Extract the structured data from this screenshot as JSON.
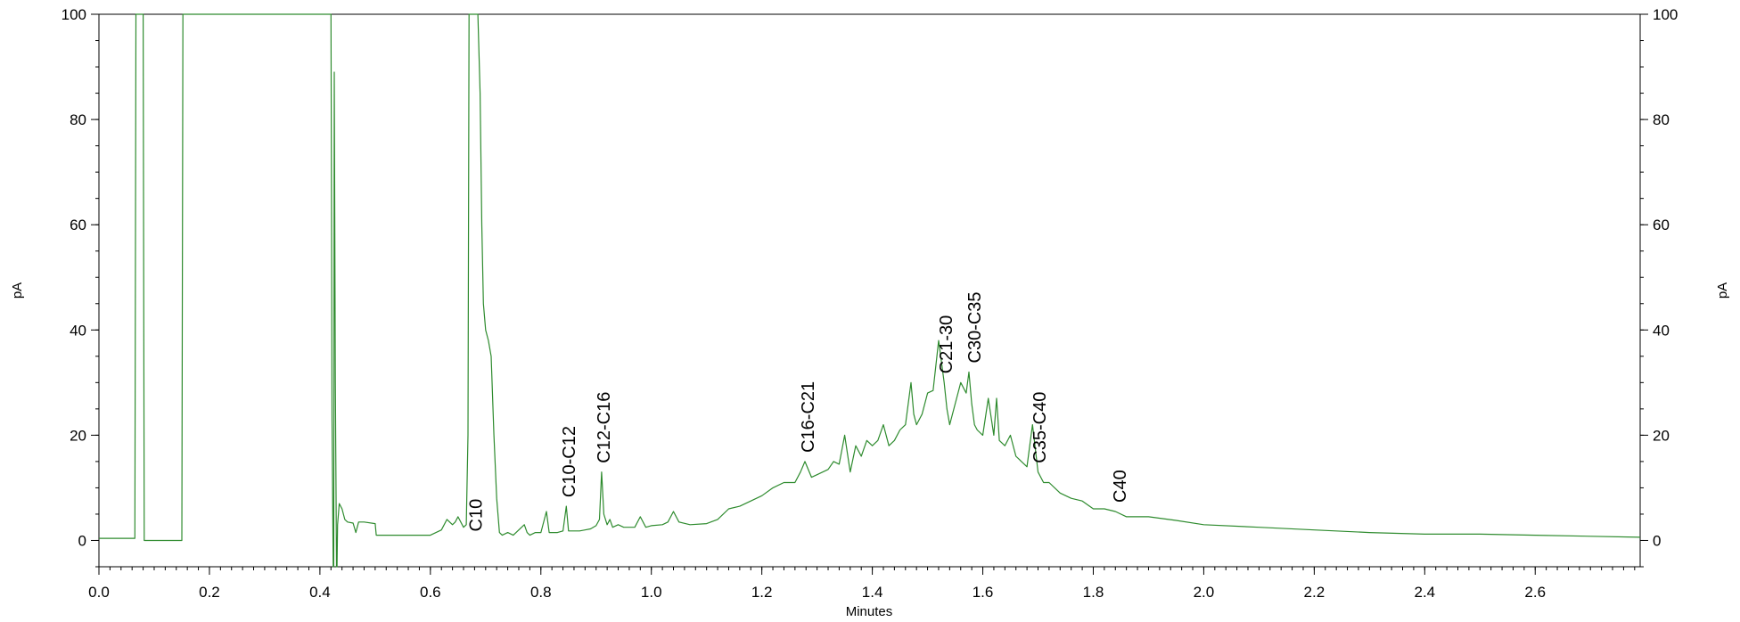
{
  "chart_data": {
    "type": "line",
    "title": "",
    "xlabel": "Minutes",
    "ylabel": "pA",
    "y2label": "pA",
    "xlim": [
      0,
      2.79
    ],
    "ylim": [
      -5,
      100
    ],
    "x_ticks": [
      0.0,
      0.2,
      0.4,
      0.6,
      0.8,
      1.0,
      1.2,
      1.4,
      1.6,
      1.8,
      2.0,
      2.2,
      2.4,
      2.6
    ],
    "x_tick_labels": [
      "0.0",
      "0.2",
      "0.4",
      "0.6",
      "0.8",
      "1.0",
      "1.2",
      "1.4",
      "1.6",
      "1.8",
      "2.0",
      "2.2",
      "2.4",
      "2.6"
    ],
    "y_ticks": [
      0,
      20,
      40,
      60,
      80,
      100
    ],
    "y_tick_labels": [
      "0",
      "20",
      "40",
      "60",
      "80",
      "100"
    ],
    "grid": false,
    "line_color": "#2e8b2e",
    "series": [
      {
        "x": [
          0.0,
          0.065,
          0.067,
          0.072,
          0.075,
          0.08,
          0.082,
          0.15,
          0.152,
          0.155,
          0.16,
          0.2,
          0.3,
          0.42,
          0.421,
          0.422,
          0.424,
          0.425,
          0.426,
          0.428,
          0.43,
          0.431,
          0.432,
          0.435,
          0.44,
          0.445,
          0.45,
          0.46,
          0.465,
          0.47,
          0.48,
          0.5,
          0.502,
          0.55,
          0.6,
          0.62,
          0.63,
          0.64,
          0.645,
          0.65,
          0.66,
          0.665,
          0.668,
          0.67,
          0.673,
          0.676,
          0.68,
          0.683,
          0.686,
          0.69,
          0.693,
          0.696,
          0.7,
          0.705,
          0.71,
          0.715,
          0.72,
          0.725,
          0.73,
          0.74,
          0.75,
          0.76,
          0.77,
          0.775,
          0.78,
          0.79,
          0.8,
          0.81,
          0.815,
          0.82,
          0.83,
          0.84,
          0.846,
          0.85,
          0.86,
          0.87,
          0.88,
          0.89,
          0.9,
          0.906,
          0.91,
          0.914,
          0.92,
          0.925,
          0.93,
          0.94,
          0.95,
          0.96,
          0.97,
          0.98,
          0.99,
          1.0,
          1.02,
          1.03,
          1.04,
          1.05,
          1.07,
          1.1,
          1.12,
          1.14,
          1.16,
          1.18,
          1.2,
          1.22,
          1.24,
          1.26,
          1.27,
          1.278,
          1.29,
          1.3,
          1.32,
          1.33,
          1.34,
          1.35,
          1.36,
          1.37,
          1.38,
          1.39,
          1.4,
          1.41,
          1.42,
          1.43,
          1.44,
          1.45,
          1.46,
          1.47,
          1.475,
          1.48,
          1.49,
          1.5,
          1.51,
          1.52,
          1.53,
          1.535,
          1.54,
          1.55,
          1.56,
          1.57,
          1.575,
          1.58,
          1.585,
          1.59,
          1.6,
          1.61,
          1.62,
          1.625,
          1.63,
          1.64,
          1.65,
          1.66,
          1.67,
          1.68,
          1.69,
          1.7,
          1.71,
          1.72,
          1.74,
          1.76,
          1.78,
          1.8,
          1.82,
          1.84,
          1.86,
          1.9,
          1.95,
          2.0,
          2.1,
          2.2,
          2.3,
          2.4,
          2.5,
          2.6,
          2.7,
          2.79
        ],
        "y": [
          0.4,
          0.4,
          100,
          100,
          100,
          100,
          0,
          0,
          100,
          100,
          100,
          100,
          100,
          100,
          65,
          23,
          -5,
          -5,
          89,
          30,
          -5,
          -5,
          3,
          7,
          6,
          4,
          3.5,
          3.3,
          1.5,
          3.5,
          3.5,
          3.2,
          1,
          1,
          1,
          2,
          4,
          3,
          3.5,
          4.5,
          2.5,
          3,
          20,
          100,
          100,
          100,
          100,
          100,
          100,
          85,
          60,
          45,
          40,
          38,
          35,
          20,
          8,
          1.5,
          1,
          1.5,
          1,
          2,
          3,
          1.5,
          1,
          1.5,
          1.5,
          5.5,
          1.5,
          1.5,
          1.5,
          1.8,
          6.5,
          1.8,
          1.8,
          1.8,
          2,
          2.2,
          2.8,
          4,
          13,
          5,
          3,
          4,
          2.5,
          3,
          2.5,
          2.5,
          2.5,
          4.5,
          2.5,
          2.8,
          3,
          3.5,
          5.5,
          3.5,
          3,
          3.2,
          4,
          6,
          6.5,
          7.5,
          8.5,
          10,
          11,
          11,
          13,
          15,
          12,
          12.5,
          13.5,
          15,
          14.5,
          20,
          13,
          18,
          16,
          19,
          18,
          19,
          22,
          18,
          19,
          21,
          22,
          30,
          24,
          22,
          24,
          28,
          28.5,
          38,
          30,
          25,
          22,
          26,
          30,
          28,
          32,
          26,
          22,
          21,
          20,
          27,
          20,
          27,
          19,
          18,
          20,
          16,
          15,
          14,
          22,
          13,
          11,
          11,
          9,
          8,
          7.5,
          6,
          6,
          5.5,
          4.5,
          4.5,
          3.8,
          3,
          2.5,
          2,
          1.5,
          1.2,
          1.2,
          1,
          0.8,
          0.6
        ]
      }
    ],
    "annotations": [
      {
        "text": "C10",
        "x": 0.682
      },
      {
        "text": "C10-C12",
        "x": 0.85
      },
      {
        "text": "C12-C16",
        "x": 0.913
      },
      {
        "text": "C16-C21",
        "x": 1.283
      },
      {
        "text": "C21-30",
        "x": 1.533
      },
      {
        "text": "C30-C35",
        "x": 1.585
      },
      {
        "text": "C35-C40",
        "x": 1.702
      },
      {
        "text": "C40",
        "x": 1.848
      }
    ]
  }
}
